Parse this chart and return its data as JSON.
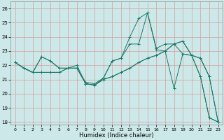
{
  "xlabel": "Humidex (Indice chaleur)",
  "xlim": [
    -0.5,
    23.5
  ],
  "ylim": [
    17.8,
    26.5
  ],
  "yticks": [
    18,
    19,
    20,
    21,
    22,
    23,
    24,
    25,
    26
  ],
  "xticks": [
    0,
    1,
    2,
    3,
    4,
    5,
    6,
    7,
    8,
    9,
    10,
    11,
    12,
    13,
    14,
    15,
    16,
    17,
    18,
    19,
    20,
    21,
    22,
    23
  ],
  "bg_color": "#cce8e8",
  "grid_color": "#d4a0a0",
  "line_color": "#1a7a6a",
  "series": [
    [
      22.2,
      21.8,
      21.5,
      22.6,
      22.3,
      21.8,
      21.8,
      22.0,
      20.7,
      20.6,
      21.1,
      22.3,
      22.5,
      24.0,
      25.3,
      25.7,
      23.1,
      23.0,
      20.4,
      22.8,
      22.7,
      21.2,
      18.3,
      18.0
    ],
    [
      22.2,
      21.8,
      21.5,
      21.5,
      21.5,
      21.5,
      21.8,
      21.8,
      20.7,
      20.6,
      21.0,
      21.2,
      21.5,
      21.8,
      22.2,
      22.5,
      22.7,
      23.0,
      23.5,
      23.7,
      22.7,
      22.5,
      21.2,
      18.0
    ],
    [
      22.2,
      21.8,
      21.5,
      22.6,
      22.3,
      21.8,
      21.8,
      21.8,
      20.8,
      20.7,
      21.1,
      22.3,
      22.5,
      23.5,
      23.5,
      25.7,
      23.2,
      23.5,
      23.5,
      22.8,
      22.7,
      21.2,
      18.3,
      18.0
    ],
    [
      22.2,
      21.8,
      21.5,
      21.5,
      21.5,
      21.5,
      21.8,
      21.8,
      20.7,
      20.6,
      21.0,
      21.2,
      21.5,
      21.8,
      22.2,
      22.5,
      22.7,
      23.0,
      23.5,
      23.7,
      22.7,
      22.5,
      21.2,
      18.0
    ]
  ],
  "figsize": [
    3.2,
    2.0
  ],
  "dpi": 100
}
